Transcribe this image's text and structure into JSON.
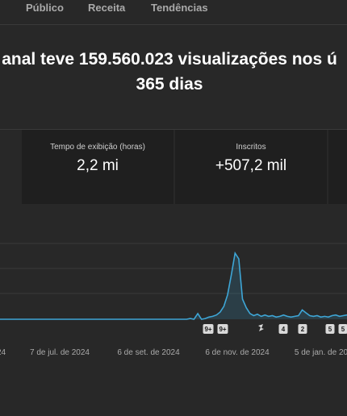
{
  "tabs": [
    "Público",
    "Receita",
    "Tendências"
  ],
  "headline": {
    "line1": "anal teve 159.560.023 visualizações nos ú",
    "line2": "365 dias"
  },
  "cards": [
    {
      "label": "Tempo de exibição (horas)",
      "value": "2,2 mi"
    },
    {
      "label": "Inscritos",
      "value": "+507,2 mil"
    }
  ],
  "colors": {
    "accent": "#3ea6d6",
    "background": "#282828",
    "card": "#1f1f1f"
  },
  "chart_data": {
    "type": "area",
    "x_tick_labels": [
      "24",
      "7 de jul. de 2024",
      "6 de set. de 2024",
      "6 de nov. de 2024",
      "5 de jan. de 20"
    ],
    "series": [
      {
        "values": [
          0,
          0,
          0,
          0,
          0,
          0,
          0,
          0,
          0,
          0,
          0,
          0,
          0,
          0,
          0,
          0,
          0,
          0,
          0,
          0,
          0,
          0,
          0,
          0,
          0,
          0,
          0,
          0,
          0,
          0,
          0,
          0,
          0,
          0,
          0,
          0,
          0,
          0,
          0,
          0,
          0,
          0,
          0,
          0,
          0,
          0,
          0,
          0,
          0,
          0,
          0,
          1,
          0,
          8,
          0,
          1,
          3,
          4,
          6,
          10,
          18,
          34,
          62,
          92,
          84,
          28,
          16,
          8,
          5,
          7,
          4,
          6,
          4,
          5,
          3,
          4,
          6,
          4,
          3,
          4,
          5,
          13,
          9,
          5,
          4,
          5,
          3,
          4,
          3,
          5,
          6,
          4,
          5,
          6
        ]
      }
    ],
    "markers": [
      "9+",
      "9+",
      "shorts",
      "4",
      "2",
      "5",
      "5"
    ]
  }
}
